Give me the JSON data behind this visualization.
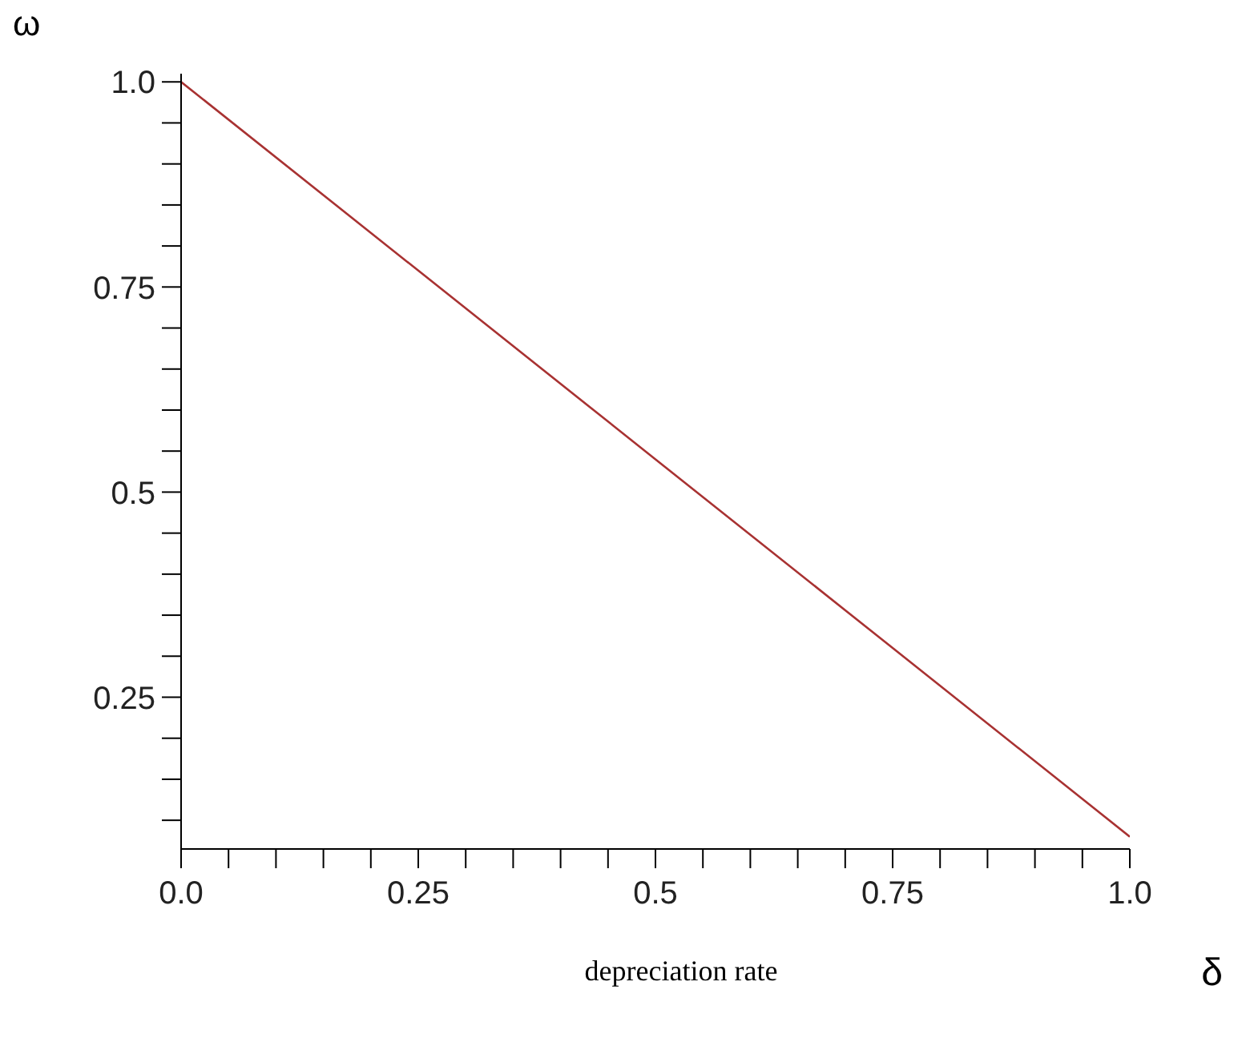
{
  "chart_data": {
    "type": "line",
    "xlabel": "depreciation rate",
    "ylabel": "ω",
    "annotations": [
      "δ"
    ],
    "x": [
      0,
      0.25,
      0.5,
      0.75,
      1.0
    ],
    "series": [
      {
        "color": "#a83232",
        "values": [
          1.0,
          0.77,
          0.54,
          0.31,
          0.08
        ]
      }
    ],
    "xlim": [
      0,
      1.0
    ],
    "ylim": [
      0.065,
      1.01
    ],
    "xticks": [
      {
        "value": 0,
        "label": "0.0"
      },
      {
        "value": 0.05,
        "label": null
      },
      {
        "value": 0.1,
        "label": null
      },
      {
        "value": 0.15,
        "label": null
      },
      {
        "value": 0.2,
        "label": null
      },
      0.25,
      {
        "value": 0.3,
        "label": null
      },
      {
        "value": 0.35,
        "label": null
      },
      {
        "value": 0.4,
        "label": null
      },
      {
        "value": 0.45,
        "label": null
      },
      0.5,
      {
        "value": 0.55,
        "label": null
      },
      {
        "value": 0.6,
        "label": null
      },
      {
        "value": 0.65,
        "label": null
      },
      {
        "value": 0.7,
        "label": null
      },
      0.75,
      {
        "value": 0.8,
        "label": null
      },
      {
        "value": 0.85,
        "label": null
      },
      {
        "value": 0.9,
        "label": null
      },
      {
        "value": 0.95,
        "label": null
      },
      {
        "value": 1.0,
        "label": "1.0"
      }
    ],
    "yticks": [
      {
        "value": 0.1,
        "label": null
      },
      {
        "value": 0.15,
        "label": null
      },
      {
        "value": 0.2,
        "label": null
      },
      0.25,
      {
        "value": 0.3,
        "label": null
      },
      {
        "value": 0.35,
        "label": null
      },
      {
        "value": 0.4,
        "label": null
      },
      {
        "value": 0.45,
        "label": null
      },
      0.5,
      {
        "value": 0.55,
        "label": null
      },
      {
        "value": 0.6,
        "label": null
      },
      {
        "value": 0.65,
        "label": null
      },
      {
        "value": 0.7,
        "label": null
      },
      0.75,
      {
        "value": 0.8,
        "label": null
      },
      {
        "value": 0.85,
        "label": null
      },
      {
        "value": 0.9,
        "label": null
      },
      {
        "value": 0.95,
        "label": null
      },
      {
        "value": 1.0,
        "label": "1.0"
      }
    ],
    "grid": false,
    "marker": "none",
    "line_style": "solid"
  }
}
